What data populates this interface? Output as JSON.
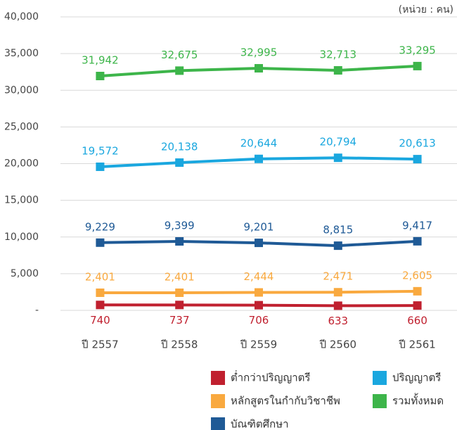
{
  "chart_data": {
    "type": "line",
    "annotation": "(หน่วย : คน)",
    "categories": [
      "ปี 2557",
      "ปี 2558",
      "ปี 2559",
      "ปี 2560",
      "ปี 2561"
    ],
    "ylim": [
      0,
      40000
    ],
    "yticks": [
      {
        "value": 0,
        "label": "-"
      },
      {
        "value": 5000,
        "label": "5,000"
      },
      {
        "value": 10000,
        "label": "10,000"
      },
      {
        "value": 15000,
        "label": "15,000"
      },
      {
        "value": 20000,
        "label": "20,000"
      },
      {
        "value": 25000,
        "label": "25,000"
      },
      {
        "value": 30000,
        "label": "30,000"
      },
      {
        "value": 35000,
        "label": "35,000"
      },
      {
        "value": 40000,
        "label": "40,000"
      }
    ],
    "grid": true,
    "series": [
      {
        "name": "ต่ำกว่าปริญญาตรี",
        "color": "#c0202f",
        "label_position": "below",
        "values": [
          740,
          737,
          706,
          633,
          660
        ],
        "value_labels": [
          "740",
          "737",
          "706",
          "633",
          "660"
        ]
      },
      {
        "name": "ปริญญาตรี",
        "color": "#1aa7df",
        "label_position": "above",
        "values": [
          19572,
          20138,
          20644,
          20794,
          20613
        ],
        "value_labels": [
          "19,572",
          "20,138",
          "20,644",
          "20,794",
          "20,613"
        ]
      },
      {
        "name": "หลักสูตรในกำกับวิชาชีพ",
        "color": "#f9a93f",
        "label_position": "above",
        "values": [
          2401,
          2401,
          2444,
          2471,
          2605
        ],
        "value_labels": [
          "2,401",
          "2,401",
          "2,444",
          "2,471",
          "2,605"
        ]
      },
      {
        "name": "รวมทั้งหมด",
        "color": "#3db54a",
        "label_position": "above",
        "values": [
          31942,
          32675,
          32995,
          32713,
          33295
        ],
        "value_labels": [
          "31,942",
          "32,675",
          "32,995",
          "32,713",
          "33,295"
        ]
      },
      {
        "name": "บัณฑิตศึกษา",
        "color": "#1f5a96",
        "label_position": "above",
        "values": [
          9229,
          9399,
          9201,
          8815,
          9417
        ],
        "value_labels": [
          "9,229",
          "9,399",
          "9,201",
          "8,815",
          "9,417"
        ]
      }
    ]
  }
}
